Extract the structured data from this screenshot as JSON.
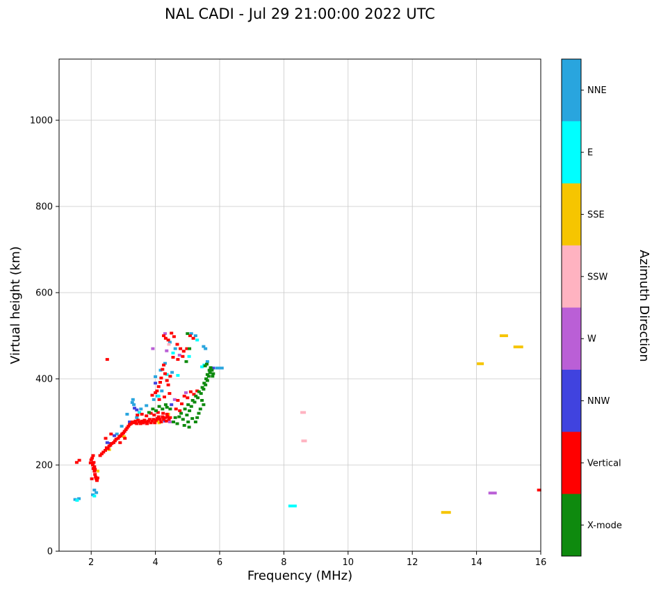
{
  "chart_data": {
    "type": "scatter",
    "title": "NAL CADI - Jul 29 21:00:00 2022 UTC",
    "xlabel": "Frequency (MHz)",
    "ylabel": "Virtual height (km)",
    "colorbar_title": "Azimuth Direction",
    "xlim": [
      1,
      16
    ],
    "ylim": [
      0,
      1142
    ],
    "xticks": [
      2,
      4,
      6,
      8,
      10,
      12,
      14,
      16
    ],
    "yticks": [
      0,
      200,
      400,
      600,
      800,
      1000
    ],
    "grid": true,
    "grid_color": "#c8c8c8",
    "legend_position": "right-colorbar",
    "legend": [
      {
        "label": "NNE",
        "color": "#29A5DE"
      },
      {
        "label": "E",
        "color": "#00FFFF"
      },
      {
        "label": "SSE",
        "color": "#F6C500"
      },
      {
        "label": "SSW",
        "color": "#FFB3C1"
      },
      {
        "label": "W",
        "color": "#BA5FD6"
      },
      {
        "label": "NNW",
        "color": "#4043DF"
      },
      {
        "label": "Vertical",
        "color": "#FF0000"
      },
      {
        "label": "X-mode",
        "color": "#0E8A0E"
      }
    ],
    "series": [
      {
        "name": "NNE",
        "color": "#29A5DE",
        "points": [
          [
            1.5,
            120
          ],
          [
            1.62,
            122
          ],
          [
            2.05,
            131
          ],
          [
            2.1,
            142
          ],
          [
            2.16,
            136
          ],
          [
            2.8,
            272
          ],
          [
            2.95,
            290
          ],
          [
            3.12,
            318
          ],
          [
            3.28,
            345
          ],
          [
            3.3,
            352
          ],
          [
            3.33,
            340
          ],
          [
            3.42,
            310
          ],
          [
            3.55,
            330
          ],
          [
            3.72,
            338
          ],
          [
            3.95,
            352
          ],
          [
            4.0,
            405
          ],
          [
            4.06,
            360
          ],
          [
            4.16,
            420
          ],
          [
            4.2,
            372
          ],
          [
            4.3,
            436
          ],
          [
            4.45,
            485
          ],
          [
            4.52,
            415
          ],
          [
            4.62,
            470
          ],
          [
            5.12,
            505
          ],
          [
            5.25,
            500
          ],
          [
            5.5,
            475
          ],
          [
            5.56,
            470
          ],
          [
            5.62,
            440
          ],
          [
            5.95,
            425,
            8
          ],
          [
            6.04,
            425,
            8
          ]
        ]
      },
      {
        "name": "E",
        "color": "#00FFFF",
        "points": [
          [
            1.56,
            118
          ],
          [
            2.1,
            128
          ],
          [
            3.5,
            322
          ],
          [
            4.1,
            360
          ],
          [
            4.36,
            410
          ],
          [
            4.55,
            460
          ],
          [
            4.7,
            408
          ],
          [
            5.05,
            452
          ],
          [
            5.3,
            490
          ],
          [
            5.45,
            428
          ],
          [
            5.52,
            432
          ],
          [
            8.27,
            105,
            12
          ]
        ]
      },
      {
        "name": "SSE",
        "color": "#F6C500",
        "points": [
          [
            2.2,
            186
          ],
          [
            2.56,
            236
          ],
          [
            3.02,
            266
          ],
          [
            4.05,
            302
          ],
          [
            4.12,
            298
          ],
          [
            4.4,
            318
          ],
          [
            13.05,
            90,
            14
          ],
          [
            14.12,
            435,
            10
          ],
          [
            14.85,
            500,
            12
          ],
          [
            15.3,
            474,
            14
          ]
        ]
      },
      {
        "name": "SSW",
        "color": "#FFB3C1",
        "points": [
          [
            2.12,
            182
          ],
          [
            3.6,
            300
          ],
          [
            3.66,
            296
          ],
          [
            4.2,
            308
          ],
          [
            4.42,
            480
          ],
          [
            8.6,
            322,
            8
          ],
          [
            8.63,
            256,
            8
          ]
        ]
      },
      {
        "name": "W",
        "color": "#BA5FD6",
        "points": [
          [
            3.92,
            470
          ],
          [
            4.3,
            505
          ],
          [
            4.35,
            465
          ],
          [
            4.45,
            300
          ],
          [
            4.6,
            352
          ],
          [
            4.75,
            455
          ],
          [
            4.95,
            368
          ],
          [
            14.5,
            135,
            12
          ]
        ]
      },
      {
        "name": "NNW",
        "color": "#4043DF",
        "points": [
          [
            2.5,
            252
          ],
          [
            2.6,
            250
          ],
          [
            2.72,
            268
          ],
          [
            3.2,
            300
          ],
          [
            3.35,
            332
          ],
          [
            3.42,
            328
          ],
          [
            4.0,
            390
          ],
          [
            4.3,
            302
          ],
          [
            4.5,
            340
          ],
          [
            5.8,
            425
          ]
        ]
      },
      {
        "name": "Vertical",
        "color": "#FF0000",
        "points": [
          [
            1.55,
            206
          ],
          [
            1.63,
            211
          ],
          [
            1.98,
            205
          ],
          [
            2.0,
            212
          ],
          [
            2.03,
            216
          ],
          [
            2.05,
            200
          ],
          [
            2.06,
            222
          ],
          [
            2.07,
            192
          ],
          [
            2.08,
            206
          ],
          [
            2.1,
            196
          ],
          [
            2.1,
            186
          ],
          [
            2.12,
            178
          ],
          [
            2.12,
            190
          ],
          [
            2.14,
            172
          ],
          [
            2.16,
            168
          ],
          [
            2.02,
            168
          ],
          [
            2.18,
            164
          ],
          [
            2.2,
            170
          ],
          [
            2.28,
            222
          ],
          [
            2.33,
            226
          ],
          [
            2.38,
            230
          ],
          [
            2.44,
            234
          ],
          [
            2.45,
            262
          ],
          [
            2.48,
            240
          ],
          [
            2.5,
            445
          ],
          [
            2.52,
            238
          ],
          [
            2.56,
            244
          ],
          [
            2.6,
            246
          ],
          [
            2.62,
            272
          ],
          [
            2.64,
            250
          ],
          [
            2.7,
            252
          ],
          [
            2.74,
            256
          ],
          [
            2.78,
            260
          ],
          [
            2.84,
            262
          ],
          [
            2.88,
            266
          ],
          [
            2.9,
            252
          ],
          [
            2.92,
            268
          ],
          [
            2.96,
            272
          ],
          [
            3.0,
            274
          ],
          [
            3.04,
            278
          ],
          [
            3.05,
            262
          ],
          [
            3.08,
            282
          ],
          [
            3.12,
            286
          ],
          [
            3.16,
            290
          ],
          [
            3.2,
            294
          ],
          [
            3.24,
            296
          ],
          [
            3.28,
            300
          ],
          [
            3.34,
            298
          ],
          [
            3.38,
            302
          ],
          [
            3.42,
            296
          ],
          [
            3.44,
            316
          ],
          [
            3.46,
            304
          ],
          [
            3.5,
            300
          ],
          [
            3.54,
            296
          ],
          [
            3.58,
            302
          ],
          [
            3.58,
            318
          ],
          [
            3.62,
            298
          ],
          [
            3.66,
            304
          ],
          [
            3.7,
            300
          ],
          [
            3.72,
            314
          ],
          [
            3.74,
            296
          ],
          [
            3.78,
            302
          ],
          [
            3.82,
            306
          ],
          [
            3.86,
            298
          ],
          [
            3.86,
            320
          ],
          [
            3.9,
            302
          ],
          [
            3.94,
            306
          ],
          [
            3.96,
            316
          ],
          [
            3.98,
            298
          ],
          [
            4.02,
            304
          ],
          [
            4.06,
            308
          ],
          [
            4.08,
            322
          ],
          [
            4.1,
            312
          ],
          [
            4.14,
            306
          ],
          [
            4.18,
            300
          ],
          [
            4.22,
            312
          ],
          [
            4.24,
            320
          ],
          [
            4.26,
            306
          ],
          [
            4.3,
            310
          ],
          [
            4.34,
            302
          ],
          [
            4.36,
            318
          ],
          [
            4.38,
            312
          ],
          [
            4.42,
            306
          ],
          [
            4.46,
            310
          ],
          [
            3.9,
            362
          ],
          [
            4.0,
            368
          ],
          [
            4.05,
            372
          ],
          [
            4.1,
            382
          ],
          [
            4.12,
            352
          ],
          [
            4.15,
            392
          ],
          [
            4.18,
            402
          ],
          [
            4.22,
            422
          ],
          [
            4.26,
            432
          ],
          [
            4.28,
            358
          ],
          [
            4.3,
            412
          ],
          [
            4.36,
            396
          ],
          [
            4.4,
            386
          ],
          [
            4.44,
            366
          ],
          [
            4.46,
            406
          ],
          [
            4.26,
            500
          ],
          [
            4.32,
            494
          ],
          [
            4.4,
            490
          ],
          [
            4.5,
            506
          ],
          [
            4.55,
            450
          ],
          [
            4.58,
            498
          ],
          [
            4.68,
            480
          ],
          [
            4.7,
            445
          ],
          [
            4.78,
            470
          ],
          [
            4.85,
            452
          ],
          [
            4.88,
            464
          ],
          [
            4.98,
            470
          ],
          [
            5.08,
            500
          ],
          [
            5.18,
            494
          ],
          [
            4.64,
            330
          ],
          [
            4.7,
            350
          ],
          [
            4.76,
            326
          ],
          [
            4.82,
            342
          ],
          [
            4.9,
            360
          ],
          [
            5.0,
            356
          ],
          [
            5.1,
            370
          ],
          [
            5.2,
            364
          ],
          [
            5.3,
            372
          ],
          [
            15.95,
            142,
            6
          ]
        ]
      },
      {
        "name": "X-mode",
        "color": "#0E8A0E",
        "points": [
          [
            3.8,
            322
          ],
          [
            3.92,
            330
          ],
          [
            4.02,
            326
          ],
          [
            4.12,
            336
          ],
          [
            4.22,
            330
          ],
          [
            4.32,
            340
          ],
          [
            4.36,
            334
          ],
          [
            4.46,
            330
          ],
          [
            4.56,
            300
          ],
          [
            4.62,
            310
          ],
          [
            4.68,
            296
          ],
          [
            4.74,
            312
          ],
          [
            4.8,
            320
          ],
          [
            4.86,
            306
          ],
          [
            4.9,
            292
          ],
          [
            4.92,
            330
          ],
          [
            4.98,
            316
          ],
          [
            5.02,
            300
          ],
          [
            5.02,
            340
          ],
          [
            5.05,
            288
          ],
          [
            5.06,
            326
          ],
          [
            5.12,
            336
          ],
          [
            5.15,
            308
          ],
          [
            5.16,
            350
          ],
          [
            5.22,
            346
          ],
          [
            5.25,
            300
          ],
          [
            5.26,
            360
          ],
          [
            5.3,
            310
          ],
          [
            5.32,
            356
          ],
          [
            5.35,
            320
          ],
          [
            5.36,
            370
          ],
          [
            5.4,
            330
          ],
          [
            5.42,
            366
          ],
          [
            5.45,
            350
          ],
          [
            5.46,
            380
          ],
          [
            5.5,
            340
          ],
          [
            5.5,
            376
          ],
          [
            5.52,
            390
          ],
          [
            5.56,
            386
          ],
          [
            5.58,
            400
          ],
          [
            5.62,
            396
          ],
          [
            5.62,
            410
          ],
          [
            5.66,
            406
          ],
          [
            5.68,
            420
          ],
          [
            5.7,
            414
          ],
          [
            5.72,
            426
          ],
          [
            5.76,
            420
          ],
          [
            5.78,
            406
          ],
          [
            5.8,
            412
          ],
          [
            4.96,
            440
          ],
          [
            5.0,
            505
          ],
          [
            5.06,
            470
          ],
          [
            5.55,
            430
          ],
          [
            5.6,
            434
          ]
        ]
      }
    ]
  }
}
